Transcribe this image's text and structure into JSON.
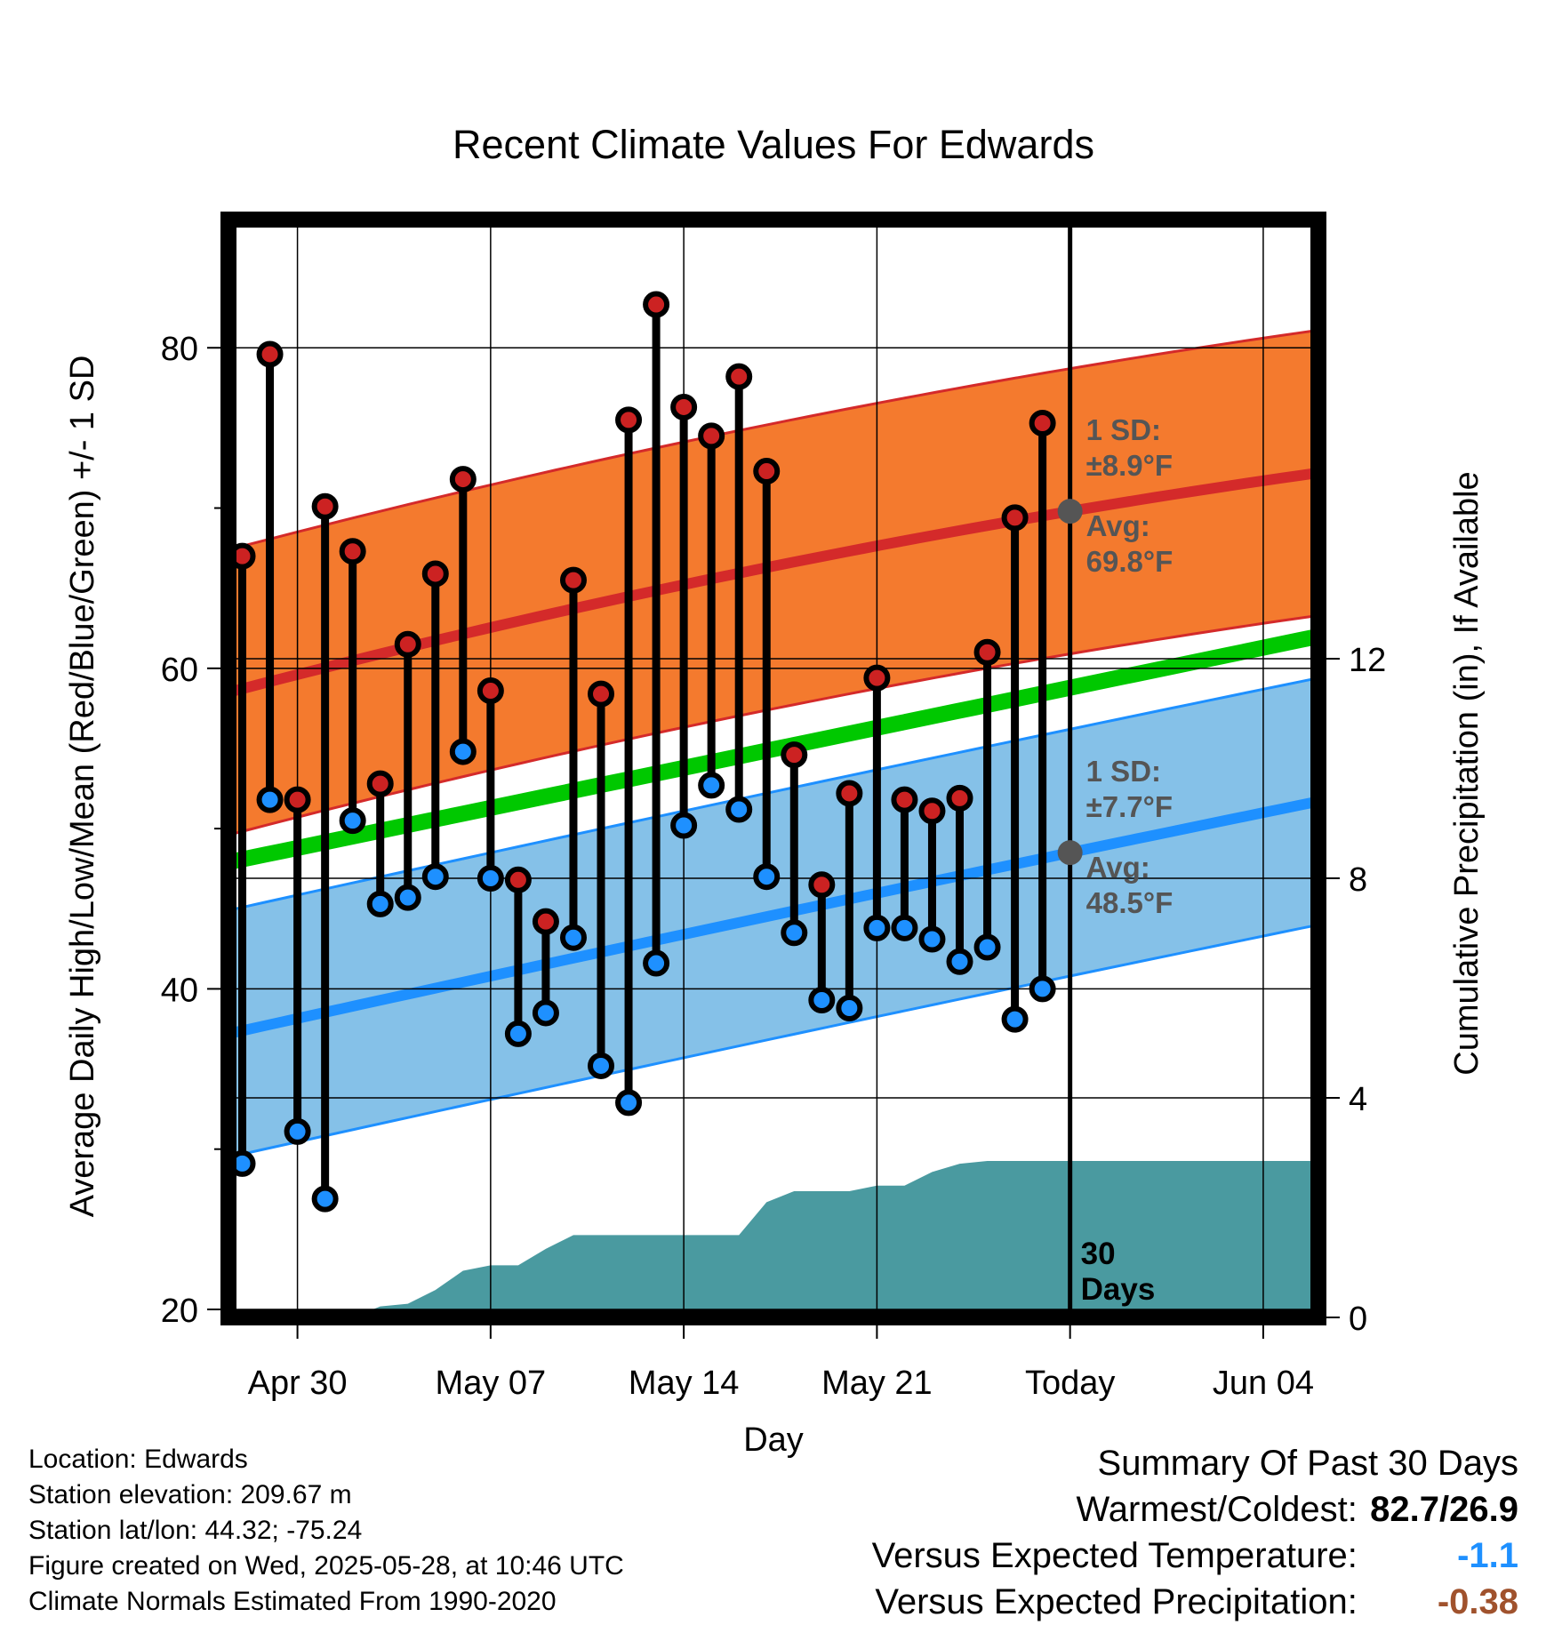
{
  "chart_data": {
    "type": "line",
    "title": "Recent Climate Values For Edwards",
    "xlabel": "Day",
    "ylabel": "Average Daily High/Low/Mean (Red/Blue/Green) +/- 1 SD",
    "y2label": "Cumulative Precipitation (in), If Available",
    "x_tick_labels": [
      "Apr 30",
      "May 07",
      "May 14",
      "May 21",
      "Today",
      "Jun 04"
    ],
    "x_tick_days": [
      2,
      9,
      16,
      23,
      30,
      37
    ],
    "xlim_days": [
      -0.5,
      39
    ],
    "ylim": [
      19.5,
      88
    ],
    "y_ticks": [
      20,
      40,
      60,
      80
    ],
    "y2lim": [
      0,
      20
    ],
    "y2_ticks": [
      0,
      4,
      8,
      12
    ],
    "grid": true,
    "days": [
      0,
      1,
      2,
      3,
      4,
      5,
      6,
      7,
      8,
      9,
      10,
      11,
      12,
      13,
      14,
      15,
      16,
      17,
      18,
      19,
      20,
      21,
      22,
      23,
      24,
      25,
      26,
      27,
      28,
      29
    ],
    "series": [
      {
        "name": "High",
        "color": "#cc2222",
        "values": [
          67.0,
          79.6,
          51.8,
          70.1,
          67.3,
          52.8,
          61.5,
          65.9,
          71.8,
          58.6,
          46.8,
          44.2,
          65.5,
          58.4,
          75.5,
          82.7,
          76.3,
          74.5,
          78.2,
          72.3,
          54.6,
          46.5,
          52.2,
          59.4,
          51.8,
          51.1,
          51.9,
          61.0,
          69.4,
          75.3
        ]
      },
      {
        "name": "Low",
        "color": "#1e90ff",
        "values": [
          29.1,
          51.8,
          31.1,
          26.9,
          50.5,
          45.3,
          45.7,
          47.0,
          54.8,
          46.9,
          37.2,
          38.5,
          43.2,
          35.2,
          32.9,
          41.6,
          50.2,
          52.7,
          51.2,
          47.0,
          43.5,
          39.3,
          38.8,
          43.8,
          43.8,
          43.1,
          41.7,
          42.6,
          38.1,
          40.0
        ]
      }
    ],
    "normal_high": {
      "start": 58.5,
      "today": 69.8,
      "end": 72.2
    },
    "normal_low": {
      "start": 37.2,
      "today": 48.5,
      "end": 51.7
    },
    "normal_mean": {
      "start": 47.9,
      "end": 62.0
    },
    "high_sd": 8.9,
    "low_sd": 7.7,
    "precip": {
      "days": [
        0,
        1,
        2,
        3,
        4,
        5,
        6,
        7,
        8,
        9,
        10,
        11,
        12,
        13,
        14,
        15,
        16,
        17,
        18,
        19,
        20,
        21,
        22,
        23,
        24,
        25,
        26,
        27,
        28,
        29,
        30,
        39
      ],
      "values": [
        0.0,
        0.0,
        0.0,
        0.0,
        0.0,
        0.2,
        0.25,
        0.5,
        0.85,
        0.95,
        0.95,
        1.25,
        1.5,
        1.5,
        1.5,
        1.5,
        1.5,
        1.5,
        1.5,
        2.1,
        2.3,
        2.3,
        2.3,
        2.4,
        2.4,
        2.65,
        2.8,
        2.85,
        2.85,
        2.85,
        2.85,
        2.85
      ]
    },
    "annotations": {
      "high_sd_label": "1 SD:",
      "high_sd_value": "±8.9°F",
      "high_avg_label": "Avg:",
      "high_avg_value": "69.8°F",
      "low_sd_label": "1 SD:",
      "low_sd_value": "±7.7°F",
      "low_avg_label": "Avg:",
      "low_avg_value": "48.5°F",
      "days_number": "30",
      "days_word": "Days"
    },
    "colors": {
      "high_band": "#f47a2e",
      "high_line": "#d42a2a",
      "low_band": "#85c1e8",
      "low_line": "#1e90ff",
      "mean_line": "#00c800",
      "precip_fill": "#4a9aa0",
      "annotation": "#555555"
    }
  },
  "footer": {
    "location": "Location: Edwards",
    "elevation": "Station elevation: 209.67 m",
    "latlon": "Station lat/lon: 44.32; -75.24",
    "created": "Figure created on Wed, 2025-05-28, at 10:46 UTC",
    "normals": "Climate Normals Estimated From 1990-2020"
  },
  "summary": {
    "title": "Summary Of Past 30 Days",
    "warm_cold_label": "Warmest/Coldest:",
    "warm_cold_value": "82.7/26.9",
    "temp_label": "Versus Expected Temperature:",
    "temp_value": "-1.1",
    "temp_color": "#1e90ff",
    "precip_label": "Versus Expected Precipitation:",
    "precip_value": "-0.38",
    "precip_color": "#a0522d"
  }
}
